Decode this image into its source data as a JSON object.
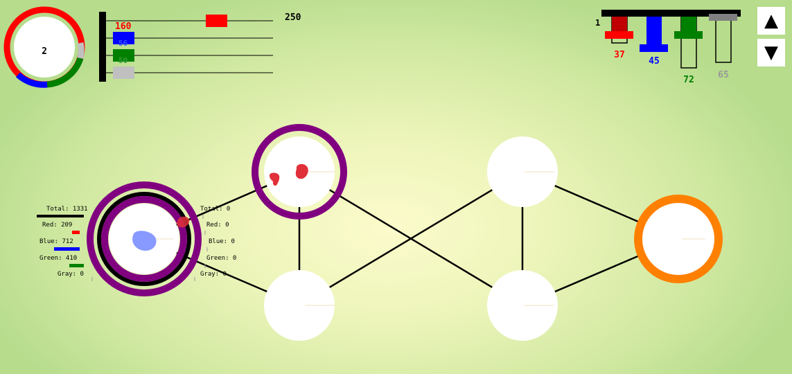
{
  "colors": {
    "red": "#ff0000",
    "blue": "#0000ff",
    "green": "#008000",
    "gray": "#c0c0c0",
    "purple": "#800080",
    "orange": "#ff8000",
    "dark_red": "#c00000",
    "blob_blue": "#8899ff",
    "blob_red": "#e0303a"
  },
  "ring_counter": {
    "value": "2"
  },
  "top_slider": {
    "max_label": "250",
    "red_value": "160",
    "blue_value": "56",
    "green_value": "50",
    "red_fraction": 0.64
  },
  "levels": {
    "index_label": "1",
    "red": {
      "value": "37",
      "fill": 0.55
    },
    "blue": {
      "value": "45",
      "fill": 1.0
    },
    "green": {
      "value": "72",
      "fill": 0.35
    },
    "gray": {
      "value": "65",
      "fill": 0.0
    }
  },
  "controls": {
    "up_icon": "▲",
    "down_icon": "▼"
  },
  "left_stats": {
    "total": "Total: 1331",
    "red": "Red:  209",
    "blue": "Blue:  712",
    "green": "Green: 410",
    "gray": "Gray:  0",
    "red_n": 209,
    "blue_n": 712,
    "green_n": 410,
    "gray_n": 0,
    "total_n": 1331
  },
  "right_stats": {
    "total": "Total: 0",
    "red": "Red:   0",
    "blue": "Blue:   0",
    "green": "Green: 0",
    "gray": "Gray:  0"
  },
  "graph": {
    "nodes": [
      {
        "id": "home",
        "type": "home"
      },
      {
        "id": "top-left",
        "type": "selected"
      },
      {
        "id": "bottom-left",
        "type": "plain"
      },
      {
        "id": "top-right",
        "type": "plain"
      },
      {
        "id": "bottom-right",
        "type": "plain"
      },
      {
        "id": "target",
        "type": "target"
      }
    ],
    "edges": [
      [
        "home",
        "top-left"
      ],
      [
        "home",
        "bottom-left"
      ],
      [
        "top-left",
        "bottom-left"
      ],
      [
        "top-left",
        "bottom-right"
      ],
      [
        "bottom-left",
        "top-right"
      ],
      [
        "top-right",
        "bottom-right"
      ],
      [
        "top-right",
        "target"
      ],
      [
        "bottom-right",
        "target"
      ]
    ]
  }
}
